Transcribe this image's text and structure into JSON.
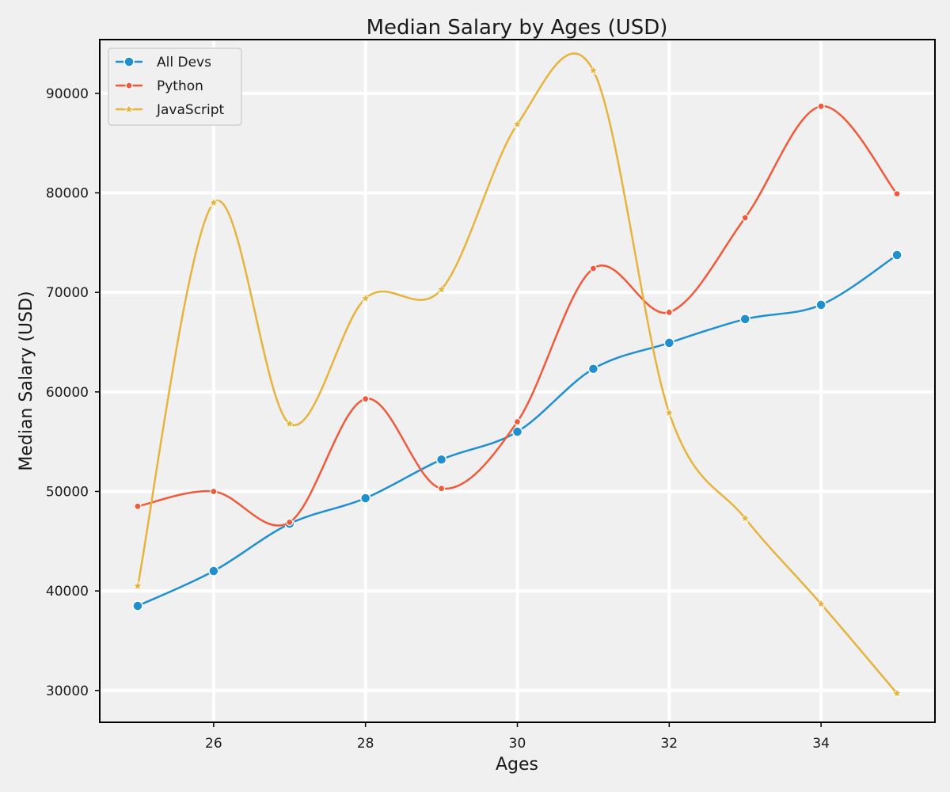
{
  "chart_data": {
    "type": "line",
    "title": "Median Salary by Ages (USD)",
    "xlabel": "Ages",
    "ylabel": "Median Salary (USD)",
    "x": [
      25,
      26,
      27,
      28,
      29,
      30,
      31,
      32,
      33,
      34,
      35
    ],
    "xlim": [
      24.5,
      35.5
    ],
    "ylim": [
      26800,
      95400
    ],
    "xticks": [
      "26",
      "28",
      "30",
      "32",
      "34"
    ],
    "yticks": [
      "30000",
      "40000",
      "50000",
      "60000",
      "70000",
      "80000",
      "90000"
    ],
    "grid": true,
    "legend": "top-left",
    "series": [
      {
        "name": "All Devs",
        "color": "#1f8fd0",
        "marker": "circle",
        "values": [
          38496,
          42000,
          46752,
          49320,
          53200,
          56000,
          62316,
          64928,
          67317,
          68748,
          73752
        ]
      },
      {
        "name": "Python",
        "color": "#f05a3a",
        "marker": "dot",
        "values": [
          48500,
          50000,
          46900,
          59300,
          50300,
          57000,
          72400,
          68000,
          77500,
          88700,
          79900
        ]
      },
      {
        "name": "JavaScript",
        "color": "#e6b43c",
        "marker": "star",
        "values": [
          40500,
          79000,
          56800,
          69400,
          70300,
          86900,
          92300,
          57900,
          47300,
          38700,
          29700
        ]
      }
    ]
  }
}
